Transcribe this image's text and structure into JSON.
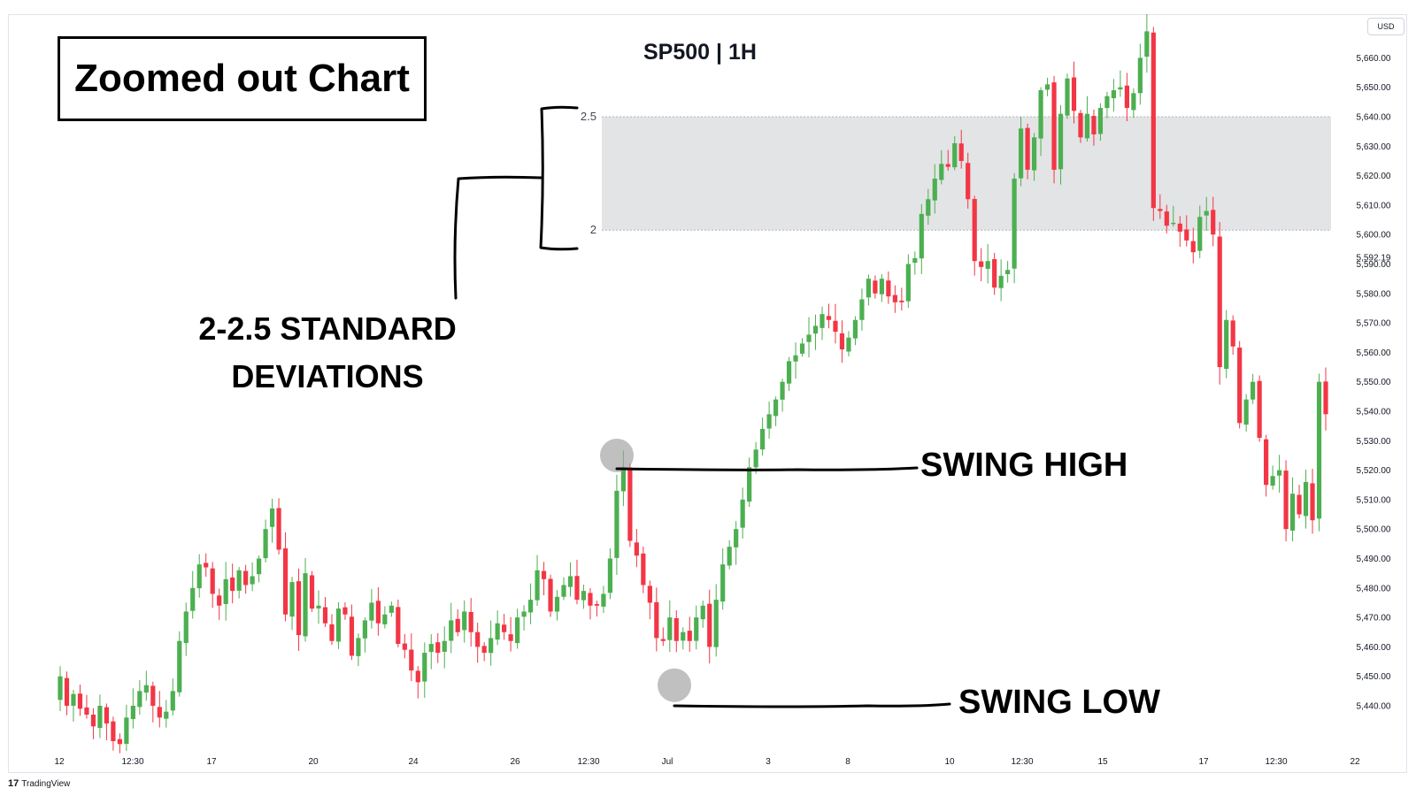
{
  "header": {
    "annotation_title": "Zoomed out Chart",
    "symbol": "SP500 | 1H",
    "currency_badge": "USD"
  },
  "annotations": {
    "std_label": "2-2.5 STANDARD DEVIATIONS",
    "swing_high": "SWING HIGH",
    "swing_low": "SWING LOW"
  },
  "brand": {
    "logo": "17",
    "name": "TradingView"
  },
  "colors": {
    "up": "#4caf50",
    "down": "#f23645",
    "zone": "#e3e4e6",
    "marker": "#9e9e9e"
  },
  "chart_data": {
    "type": "candlestick",
    "price_range": [
      5435,
      5685
    ],
    "price_ticks": [
      "5,440.00",
      "5,450.00",
      "5,460.00",
      "5,470.00",
      "5,480.00",
      "5,490.00",
      "5,500.00",
      "5,510.00",
      "5,520.00",
      "5,530.00",
      "5,540.00",
      "5,550.00",
      "5,560.00",
      "5,570.00",
      "5,580.00",
      "5,590.00",
      "5,600.00",
      "5,610.00",
      "5,620.00",
      "5,630.00",
      "5,640.00",
      "5,650.00",
      "5,660.00"
    ],
    "current_price_label": "5,592.19",
    "time_labels": [
      "12",
      "12:30",
      "17",
      "20",
      "24",
      "26",
      "12:30",
      "Jul",
      "3",
      "8",
      "10",
      "12:30",
      "15",
      "17",
      "12:30",
      "22"
    ],
    "fib_zone": {
      "levels": [
        {
          "label": "2.5",
          "price": 5640
        },
        {
          "label": "2",
          "price": 5601.5
        }
      ]
    },
    "swing_high": 5525,
    "swing_low": 5447,
    "closes": [
      5450,
      5440,
      5444,
      5439,
      5437,
      5433,
      5440,
      5434,
      5428,
      5427,
      5436,
      5440,
      5445,
      5447,
      5440,
      5436,
      5438,
      5445,
      5462,
      5472,
      5480,
      5488,
      5487,
      5478,
      5474,
      5483,
      5479,
      5486,
      5481,
      5484,
      5490,
      5500,
      5507,
      5493,
      5471,
      5482,
      5464,
      5485,
      5473,
      5474,
      5468,
      5462,
      5473,
      5471,
      5457,
      5463,
      5469,
      5475,
      5468,
      5471,
      5474,
      5461,
      5459,
      5452,
      5448,
      5458,
      5461,
      5458,
      5462,
      5469,
      5465,
      5472,
      5465,
      5460,
      5458,
      5463,
      5468,
      5465,
      5462,
      5470,
      5472,
      5476,
      5486,
      5483,
      5472,
      5477,
      5481,
      5484,
      5476,
      5479,
      5474,
      5474,
      5478,
      5490,
      5513,
      5521,
      5496,
      5491,
      5481,
      5475,
      5463,
      5462,
      5470,
      5462,
      5465,
      5462,
      5470,
      5474,
      5460,
      5476,
      5488,
      5494,
      5500,
      5510,
      5521,
      5527,
      5534,
      5539,
      5544,
      5550,
      5557,
      5559,
      5563,
      5566,
      5569,
      5573,
      5571,
      5567,
      5561,
      5565,
      5571,
      5578,
      5585,
      5580,
      5585,
      5579,
      5577,
      5577,
      5590,
      5592,
      5607,
      5612,
      5619,
      5624,
      5623,
      5631,
      5625,
      5612,
      5591,
      5589,
      5591,
      5582,
      5586,
      5588,
      5619,
      5636,
      5622,
      5633,
      5649,
      5651,
      5622,
      5641,
      5653,
      5642,
      5633,
      5641,
      5634,
      5643,
      5647,
      5649,
      5650,
      5643,
      5648,
      5660,
      5669,
      5609,
      5608,
      5603,
      5604,
      5601,
      5598,
      5594,
      5606,
      5608,
      5600,
      5555,
      5571,
      5562,
      5536,
      5544,
      5550,
      5531,
      5515,
      5518,
      5520,
      5500,
      5512,
      5505,
      5516,
      5503,
      5550,
      5539
    ]
  }
}
